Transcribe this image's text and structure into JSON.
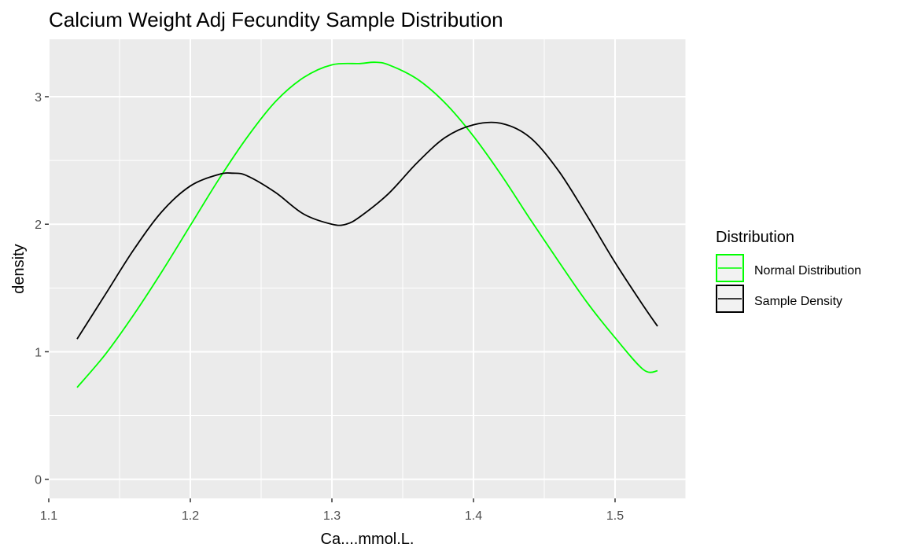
{
  "chart_data": {
    "type": "line",
    "title": "Calcium Weight Adj Fecundity Sample Distribution",
    "xlabel": "Ca....mmol.L.",
    "ylabel": "density",
    "xlim": [
      1.1,
      1.55
    ],
    "ylim": [
      -0.15,
      3.45
    ],
    "x_ticks": [
      "1.1",
      "1.2",
      "1.3",
      "1.4",
      "1.5"
    ],
    "y_ticks": [
      "0",
      "1",
      "2",
      "3"
    ],
    "grid": true,
    "legend": {
      "title": "Distribution",
      "position": "right",
      "entries": [
        "Normal Distribution",
        "Sample Density"
      ]
    },
    "series": [
      {
        "name": "Normal Distribution",
        "color": "#00ff00",
        "x": [
          1.12,
          1.14,
          1.16,
          1.18,
          1.2,
          1.22,
          1.24,
          1.26,
          1.28,
          1.3,
          1.32,
          1.33,
          1.34,
          1.36,
          1.38,
          1.4,
          1.42,
          1.44,
          1.46,
          1.48,
          1.5,
          1.52,
          1.53
        ],
        "y": [
          0.72,
          0.98,
          1.29,
          1.63,
          1.99,
          2.35,
          2.68,
          2.96,
          3.15,
          3.25,
          3.26,
          3.27,
          3.25,
          3.14,
          2.95,
          2.69,
          2.38,
          2.04,
          1.71,
          1.39,
          1.11,
          0.86,
          0.85
        ]
      },
      {
        "name": "Sample Density",
        "color": "#000000",
        "x": [
          1.12,
          1.14,
          1.16,
          1.18,
          1.2,
          1.22,
          1.23,
          1.24,
          1.26,
          1.28,
          1.3,
          1.31,
          1.32,
          1.34,
          1.36,
          1.38,
          1.4,
          1.42,
          1.44,
          1.46,
          1.48,
          1.5,
          1.52,
          1.53
        ],
        "y": [
          1.1,
          1.45,
          1.8,
          2.1,
          2.3,
          2.39,
          2.4,
          2.38,
          2.25,
          2.08,
          2.0,
          2.0,
          2.06,
          2.24,
          2.48,
          2.68,
          2.78,
          2.79,
          2.68,
          2.42,
          2.07,
          1.7,
          1.36,
          1.2
        ]
      }
    ]
  }
}
